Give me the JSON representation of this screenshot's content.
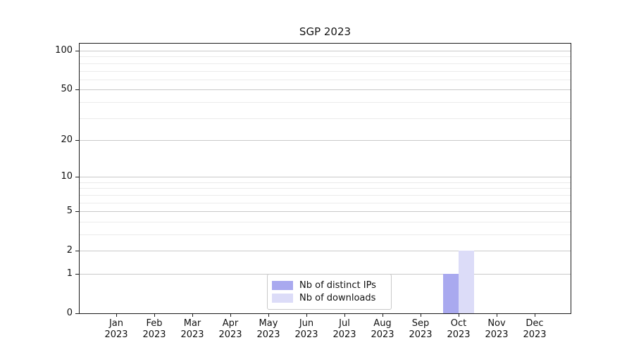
{
  "figure": {
    "title": "SGP 2023",
    "background": "#ffffff"
  },
  "chart_data": {
    "type": "bar",
    "title": "SGP 2023",
    "categories": [
      "Jan 2023",
      "Feb 2023",
      "Mar 2023",
      "Apr 2023",
      "May 2023",
      "Jun 2023",
      "Jul 2023",
      "Aug 2023",
      "Sep 2023",
      "Oct 2023",
      "Nov 2023",
      "Dec 2023"
    ],
    "series": [
      {
        "name": "Nb of distinct IPs",
        "color": "#a9a9ef",
        "values": [
          0,
          0,
          0,
          0,
          0,
          0,
          0,
          0,
          0,
          1,
          0,
          0
        ]
      },
      {
        "name": "Nb of downloads",
        "color": "#dcdcf8",
        "values": [
          0,
          0,
          0,
          0,
          0,
          0,
          0,
          0,
          0,
          2,
          0,
          0
        ]
      }
    ],
    "xlabel": "",
    "ylabel": "",
    "yscale": "log1p",
    "ylim": [
      0,
      100
    ],
    "yticks": [
      0,
      1,
      2,
      5,
      10,
      20,
      50,
      100
    ],
    "minor_grid_values": [
      3,
      4,
      6,
      7,
      8,
      9,
      30,
      40,
      60,
      70,
      80,
      90
    ],
    "grid": "horizontal",
    "legend": {
      "position": "bottom-center",
      "entries": [
        "Nb of distinct IPs",
        "Nb of downloads"
      ]
    }
  },
  "colors": {
    "axis": "#1a1a1a",
    "major_grid": "#c9c9c9",
    "minor_grid": "#ebebeb",
    "text": "#111111",
    "legend_border": "#c9c9c9"
  }
}
